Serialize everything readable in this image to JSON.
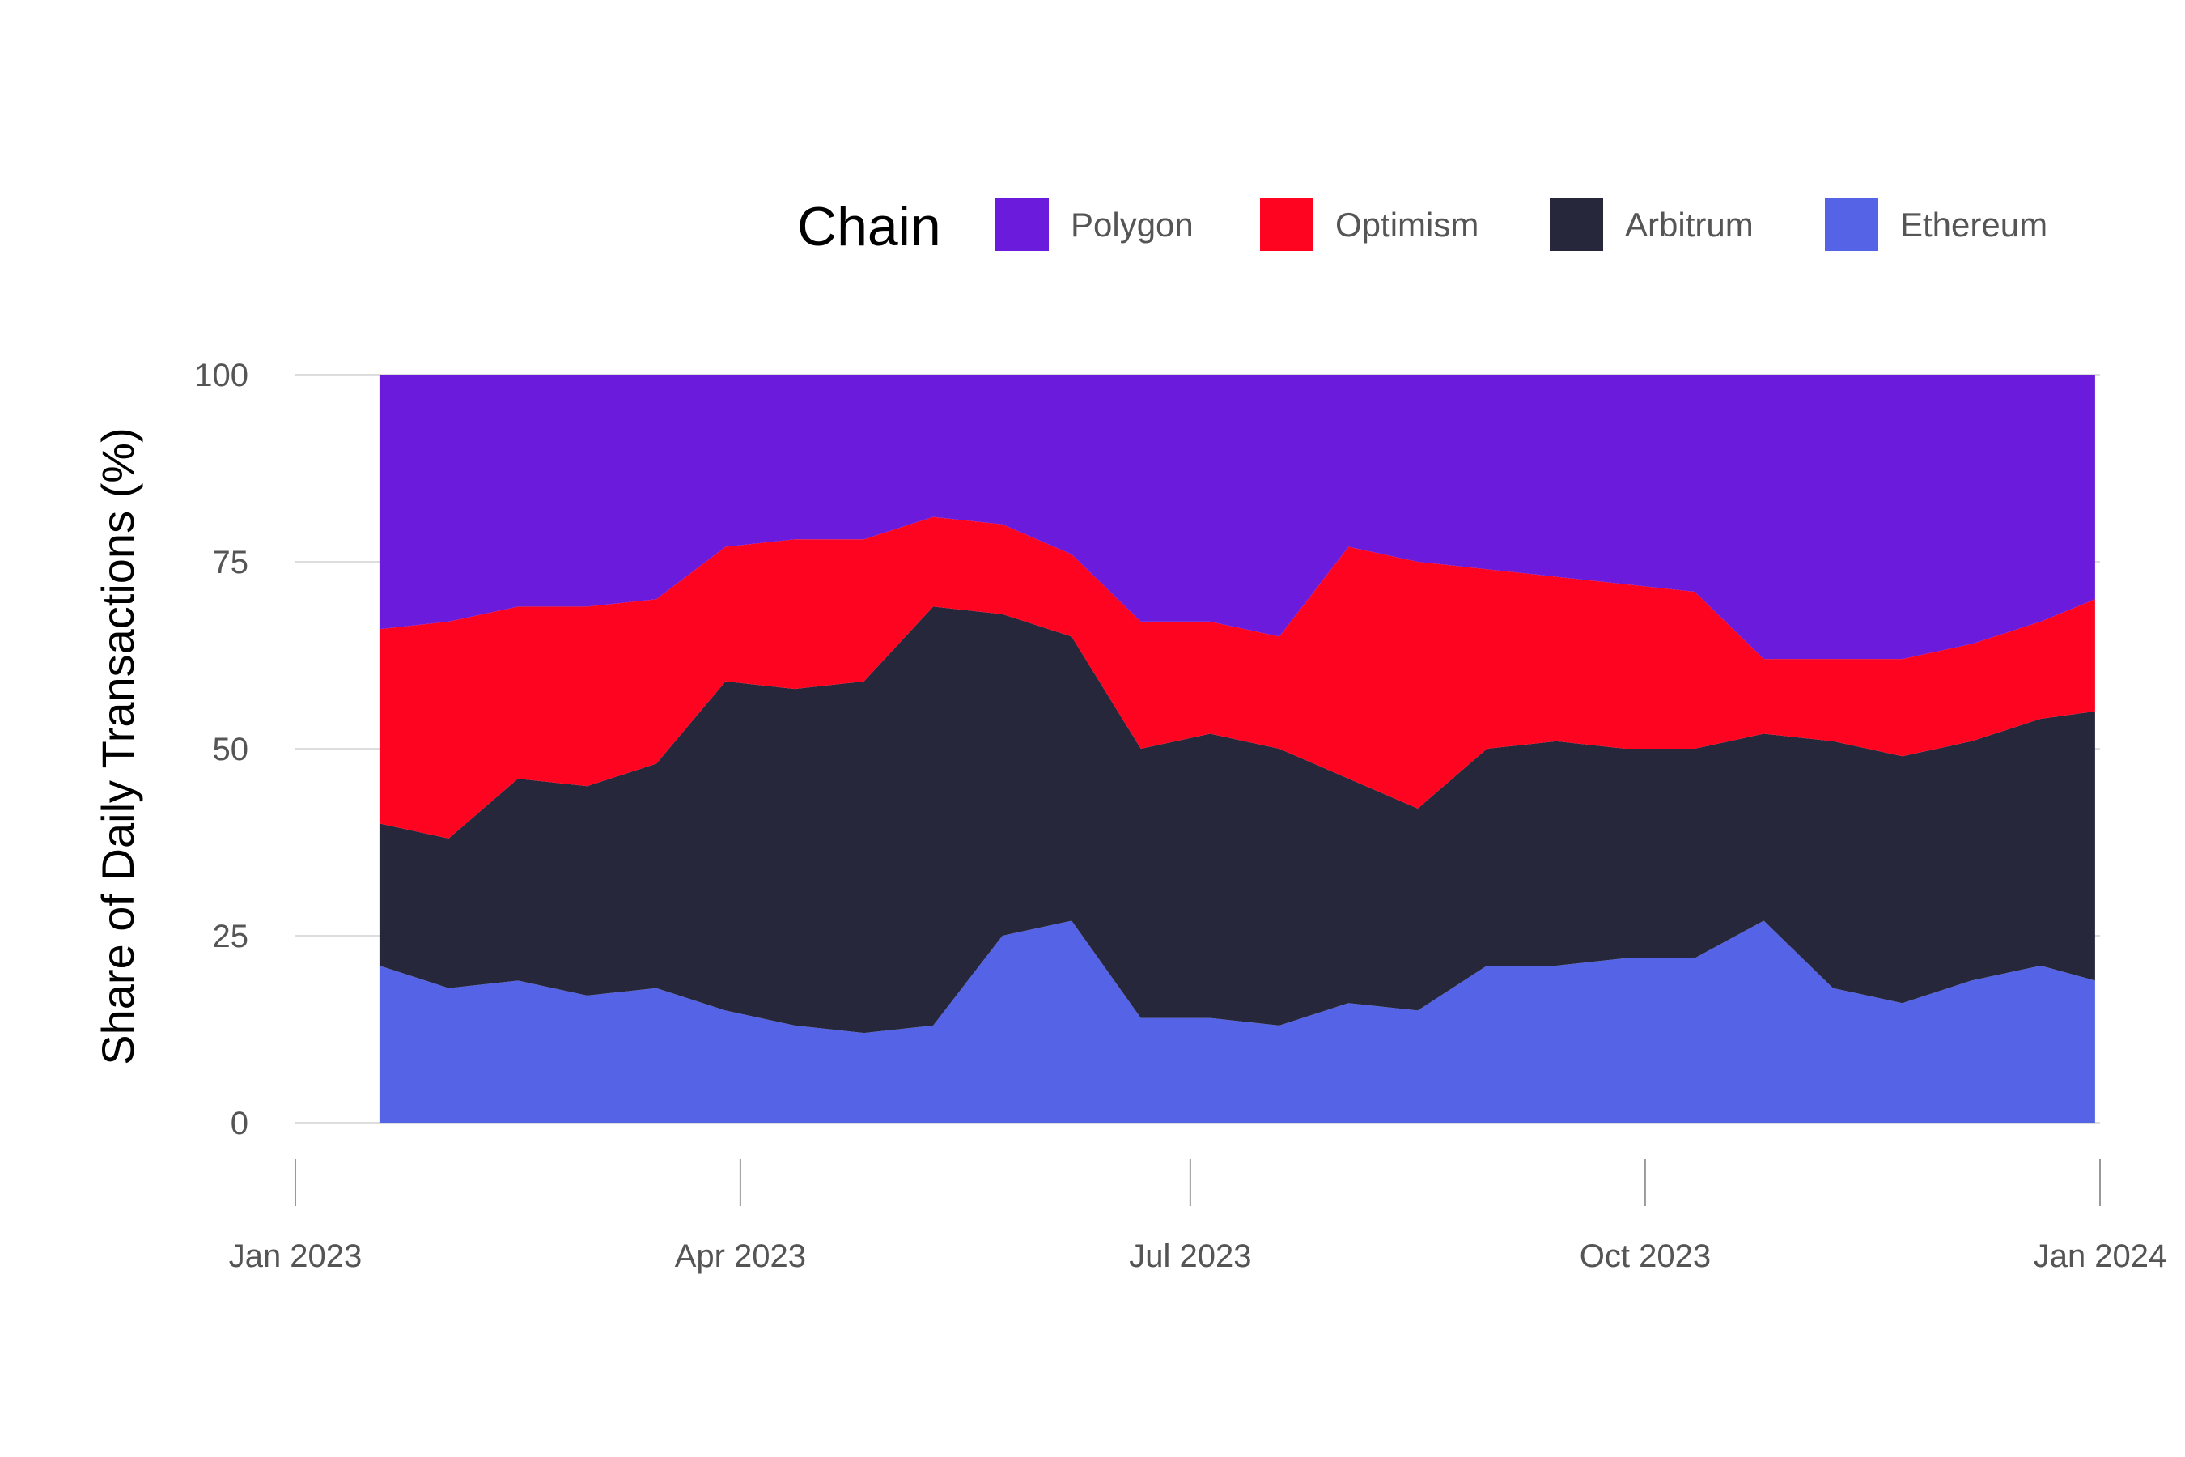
{
  "chart_data": {
    "type": "area",
    "stacked": true,
    "ylabel": "Share of Daily Transactions (%)",
    "xlabel": "",
    "ylim": [
      0,
      100
    ],
    "yticks": [
      0,
      25,
      50,
      75,
      100
    ],
    "xticks": [
      {
        "date": "2023-01-01",
        "label": "Jan 2023"
      },
      {
        "date": "2023-04-01",
        "label": "Apr 2023"
      },
      {
        "date": "2023-07-01",
        "label": "Jul 2023"
      },
      {
        "date": "2023-10-01",
        "label": "Oct 2023"
      },
      {
        "date": "2024-01-01",
        "label": "Jan 2024"
      }
    ],
    "xrange": [
      "2023-01-01",
      "2024-01-01"
    ],
    "legend": {
      "title": "Chain",
      "position": "top-right"
    },
    "dates": [
      "2023-01-18",
      "2023-02-01",
      "2023-02-15",
      "2023-03-01",
      "2023-03-15",
      "2023-03-29",
      "2023-04-12",
      "2023-04-26",
      "2023-05-10",
      "2023-05-24",
      "2023-06-07",
      "2023-06-21",
      "2023-07-05",
      "2023-07-19",
      "2023-08-02",
      "2023-08-16",
      "2023-08-30",
      "2023-09-13",
      "2023-09-27",
      "2023-10-11",
      "2023-10-25",
      "2023-11-08",
      "2023-11-22",
      "2023-12-06",
      "2023-12-20",
      "2023-12-31"
    ],
    "series": [
      {
        "name": "Ethereum",
        "color": "#5563e6",
        "values": [
          21,
          18,
          19,
          17,
          18,
          15,
          13,
          12,
          13,
          25,
          27,
          14,
          14,
          13,
          16,
          15,
          21,
          21,
          22,
          22,
          27,
          18,
          16,
          19,
          21,
          19
        ]
      },
      {
        "name": "Arbitrum",
        "color": "#26273b",
        "values": [
          19,
          20,
          27,
          28,
          30,
          44,
          45,
          47,
          56,
          43,
          38,
          36,
          38,
          37,
          30,
          27,
          29,
          30,
          28,
          28,
          25,
          33,
          33,
          32,
          33,
          36
        ]
      },
      {
        "name": "Optimism",
        "color": "#ff0420",
        "values": [
          26,
          29,
          23,
          24,
          22,
          18,
          20,
          19,
          12,
          12,
          11,
          17,
          15,
          15,
          31,
          33,
          24,
          22,
          22,
          21,
          10,
          11,
          13,
          13,
          13,
          15
        ]
      },
      {
        "name": "Polygon",
        "color": "#6a1bdc",
        "values": [
          34,
          33,
          31,
          31,
          30,
          23,
          22,
          22,
          19,
          20,
          24,
          33,
          33,
          35,
          23,
          25,
          26,
          27,
          28,
          29,
          38,
          38,
          38,
          36,
          33,
          30
        ]
      }
    ]
  }
}
